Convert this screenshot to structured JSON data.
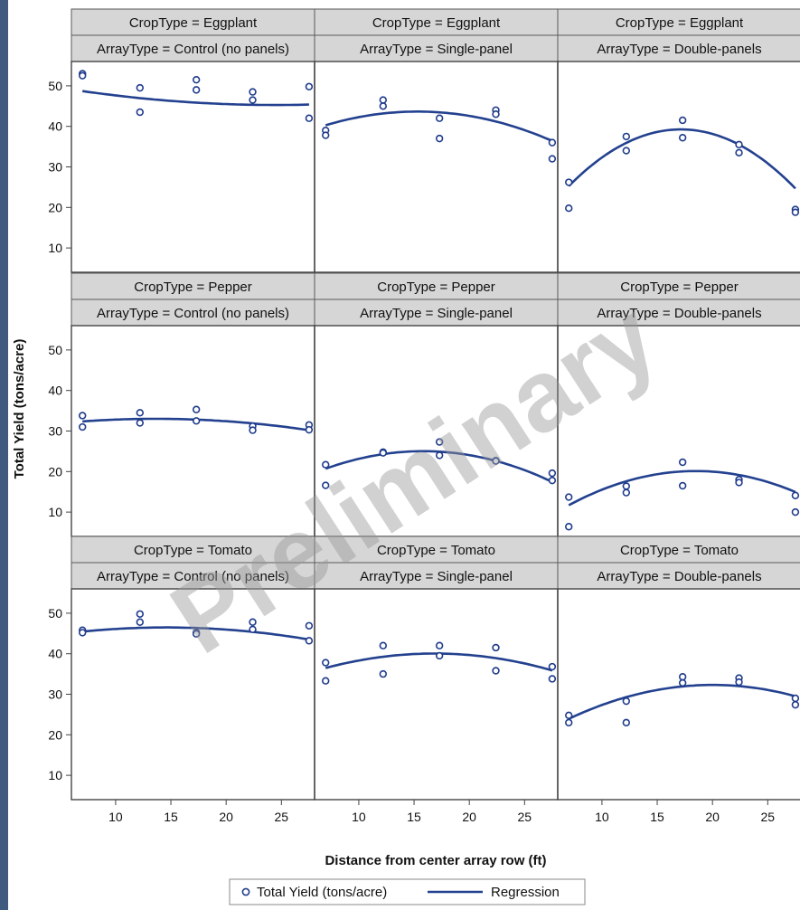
{
  "chart_data": {
    "type": "scatter",
    "subtype": "faceted-scatter-with-quadratic-regression",
    "xlabel": "Distance from center array row (ft)",
    "ylabel": "Total Yield (tons/acre)",
    "xticks": [
      10,
      15,
      20,
      25
    ],
    "yticks": [
      10,
      20,
      30,
      40,
      50
    ],
    "xlim": [
      6,
      28
    ],
    "ylim": [
      4,
      56
    ],
    "watermark": "Preliminary",
    "legend": {
      "position": "bottom",
      "items": [
        {
          "label": "Total Yield (tons/acre)",
          "marker": "circle"
        },
        {
          "label": "Regression",
          "marker": "line"
        }
      ]
    },
    "colors": {
      "series": "#23418f",
      "strip": "#d6d6d6"
    },
    "panels": [
      {
        "crop": "CropType = Eggplant",
        "array": "ArrayType = Control (no panels)",
        "points": [
          [
            7,
            53
          ],
          [
            7,
            52.5
          ],
          [
            12.2,
            49.5
          ],
          [
            12.2,
            43.5
          ],
          [
            17.3,
            51.5
          ],
          [
            17.3,
            49
          ],
          [
            22.4,
            48.5
          ],
          [
            22.4,
            46.5
          ],
          [
            27.5,
            49.8
          ],
          [
            27.5,
            42
          ]
        ],
        "fit": [
          52,
          -0.549,
          0.0112
        ]
      },
      {
        "crop": "CropType = Eggplant",
        "array": "ArrayType = Single-panel",
        "points": [
          [
            7,
            39
          ],
          [
            7,
            37.8
          ],
          [
            12.2,
            46.5
          ],
          [
            12.2,
            45
          ],
          [
            17.3,
            42
          ],
          [
            17.3,
            37
          ],
          [
            22.4,
            44
          ],
          [
            22.4,
            43
          ],
          [
            27.5,
            36
          ],
          [
            27.5,
            32
          ]
        ],
        "fit": [
          32.2,
          1.495,
          -0.0488
        ]
      },
      {
        "crop": "CropType = Eggplant",
        "array": "ArrayType = Double-panels",
        "points": [
          [
            7,
            26.2
          ],
          [
            7,
            19.8
          ],
          [
            12.2,
            37.5
          ],
          [
            12.2,
            34
          ],
          [
            17.3,
            41.5
          ],
          [
            17.3,
            37.2
          ],
          [
            22.4,
            35.5
          ],
          [
            22.4,
            33.5
          ],
          [
            27.5,
            19.5
          ],
          [
            27.5,
            18.8
          ]
        ],
        "fit": [
          -0.7,
          4.66,
          -0.1359
        ]
      },
      {
        "crop": "CropType = Pepper",
        "array": "ArrayType = Control (no panels)",
        "points": [
          [
            7,
            33.8
          ],
          [
            7,
            31
          ],
          [
            12.2,
            34.5
          ],
          [
            12.2,
            32
          ],
          [
            17.3,
            35.3
          ],
          [
            17.3,
            32.5
          ],
          [
            22.4,
            31.2
          ],
          [
            22.4,
            30.2
          ],
          [
            27.5,
            31.5
          ],
          [
            27.5,
            30.3
          ]
        ],
        "fit": [
          30.3,
          0.398,
          -0.0146
        ]
      },
      {
        "crop": "CropType = Pepper",
        "array": "ArrayType = Single-panel",
        "points": [
          [
            7,
            21.7
          ],
          [
            7,
            16.6
          ],
          [
            12.2,
            24.8
          ],
          [
            12.2,
            24.6
          ],
          [
            17.3,
            27.3
          ],
          [
            17.3,
            24
          ],
          [
            22.4,
            22.7
          ],
          [
            22.4,
            22.6
          ],
          [
            27.5,
            19.6
          ],
          [
            27.5,
            17.8
          ]
        ],
        "fit": [
          11.1,
          1.76,
          -0.0556
        ]
      },
      {
        "crop": "CropType = Pepper",
        "array": "ArrayType = Double-panels",
        "points": [
          [
            7,
            13.7
          ],
          [
            7,
            6.4
          ],
          [
            12.2,
            16.4
          ],
          [
            12.2,
            14.8
          ],
          [
            17.3,
            22.3
          ],
          [
            17.3,
            16.5
          ],
          [
            22.4,
            18
          ],
          [
            22.4,
            17.3
          ],
          [
            27.5,
            14.1
          ],
          [
            27.5,
            10
          ]
        ],
        "fit": [
          -1.7,
          2.36,
          -0.0638
        ]
      },
      {
        "crop": "CropType = Tomato",
        "array": "ArrayType = Control (no panels)",
        "points": [
          [
            7,
            45.8
          ],
          [
            7,
            45.2
          ],
          [
            12.2,
            49.8
          ],
          [
            12.2,
            47.8
          ],
          [
            17.3,
            45.2
          ],
          [
            17.3,
            44.9
          ],
          [
            22.4,
            47.8
          ],
          [
            22.4,
            46
          ],
          [
            27.5,
            46.9
          ],
          [
            27.5,
            43.2
          ]
        ],
        "fit": [
          42.7,
          0.519,
          -0.0178
        ]
      },
      {
        "crop": "CropType = Tomato",
        "array": "ArrayType = Single-panel",
        "points": [
          [
            7,
            37.8
          ],
          [
            7,
            33.3
          ],
          [
            12.2,
            42
          ],
          [
            12.2,
            35
          ],
          [
            17.3,
            42
          ],
          [
            17.3,
            39.5
          ],
          [
            22.4,
            41.5
          ],
          [
            22.4,
            35.8
          ],
          [
            27.5,
            36.8
          ],
          [
            27.5,
            33.8
          ]
        ],
        "fit": [
          29.6,
          1.24,
          -0.0368
        ]
      },
      {
        "crop": "CropType = Tomato",
        "array": "ArrayType = Double-panels",
        "points": [
          [
            7,
            24.8
          ],
          [
            7,
            23
          ],
          [
            12.2,
            28.3
          ],
          [
            12.2,
            23
          ],
          [
            17.3,
            34.3
          ],
          [
            17.3,
            32.8
          ],
          [
            22.4,
            34
          ],
          [
            22.4,
            33
          ],
          [
            27.5,
            29
          ],
          [
            27.5,
            27.4
          ]
        ],
        "fit": [
          12.5,
          1.98,
          -0.0495
        ]
      }
    ]
  }
}
